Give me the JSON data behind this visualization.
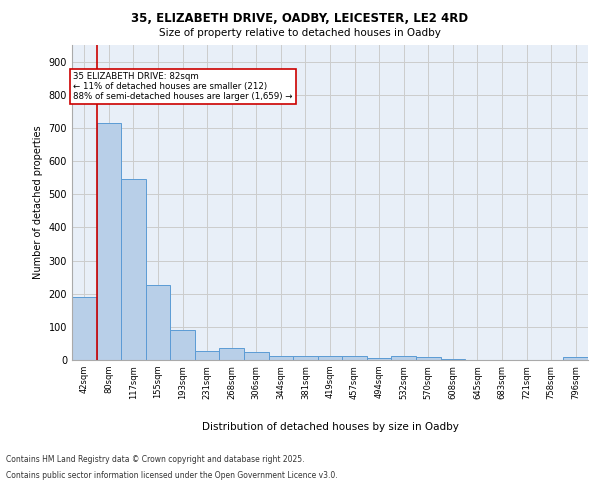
{
  "title_line1": "35, ELIZABETH DRIVE, OADBY, LEICESTER, LE2 4RD",
  "title_line2": "Size of property relative to detached houses in Oadby",
  "xlabel": "Distribution of detached houses by size in Oadby",
  "ylabel": "Number of detached properties",
  "categories": [
    "42sqm",
    "80sqm",
    "117sqm",
    "155sqm",
    "193sqm",
    "231sqm",
    "268sqm",
    "306sqm",
    "344sqm",
    "381sqm",
    "419sqm",
    "457sqm",
    "494sqm",
    "532sqm",
    "570sqm",
    "608sqm",
    "645sqm",
    "683sqm",
    "721sqm",
    "758sqm",
    "796sqm"
  ],
  "values": [
    190,
    715,
    545,
    225,
    90,
    27,
    37,
    25,
    12,
    12,
    12,
    12,
    5,
    12,
    8,
    2,
    1,
    0,
    0,
    0,
    10
  ],
  "bar_color": "#b8cfe8",
  "bar_edge_color": "#5b9bd5",
  "vline_color": "#cc0000",
  "annotation_text": "35 ELIZABETH DRIVE: 82sqm\n← 11% of detached houses are smaller (212)\n88% of semi-detached houses are larger (1,659) →",
  "annotation_box_color": "#cc0000",
  "ylim": [
    0,
    950
  ],
  "yticks": [
    0,
    100,
    200,
    300,
    400,
    500,
    600,
    700,
    800,
    900
  ],
  "grid_color": "#cccccc",
  "bg_color": "#e8eff8",
  "footer_line1": "Contains HM Land Registry data © Crown copyright and database right 2025.",
  "footer_line2": "Contains public sector information licensed under the Open Government Licence v3.0."
}
